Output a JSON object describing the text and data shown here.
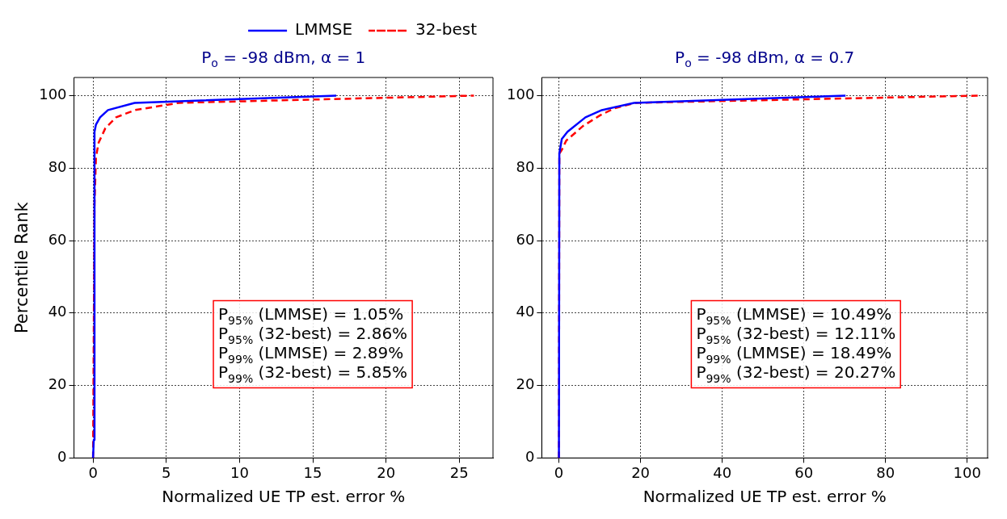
{
  "chart_data": [
    {
      "type": "line",
      "title": "P$_{o}$ = -98 dBm, α = 1",
      "xlabel": "Normalized UE TP est. error %",
      "ylabel": "Percentile Rank",
      "xlim": [
        -1.3,
        27.3
      ],
      "xticks": [
        0,
        5,
        10,
        15,
        20,
        25
      ],
      "ylim": [
        0,
        105
      ],
      "yticks": [
        0,
        20,
        40,
        60,
        80,
        100
      ],
      "grid": true,
      "legend": "top",
      "series": [
        {
          "name": "LMMSE",
          "color": "#0000ff",
          "line_style": "solid",
          "x": [
            0,
            0.05,
            0.1,
            0.2,
            0.48,
            1.02,
            2.84,
            16.6
          ],
          "values": [
            0,
            5,
            90,
            92,
            94,
            96,
            98,
            100
          ]
        },
        {
          "name": "32-best",
          "color": "#ff0000",
          "line_style": "dashed",
          "x": [
            0,
            0.1,
            0.2,
            0.38,
            0.84,
            1.57,
            2.86,
            5.85,
            26
          ],
          "values": [
            0,
            70,
            83,
            87,
            91,
            94,
            96,
            98,
            100
          ]
        }
      ],
      "annotations": [
        "P$_{95%}$ (LMMSE) = 1.05%",
        "P$_{95%}$ (32-best) = 2.86%",
        "P$_{99%}$ (LMMSE) = 2.89%",
        "P$_{99%}$ (32-best) = 5.85%"
      ]
    },
    {
      "type": "line",
      "title": "P$_{o}$ = -98 dBm, α = 0.7",
      "xlabel": "Normalized UE TP est. error %",
      "xlim": [
        -4.2,
        105
      ],
      "xticks": [
        0,
        20,
        40,
        60,
        80,
        100
      ],
      "ylim": [
        0,
        105
      ],
      "yticks": [
        0,
        20,
        40,
        60,
        80,
        100
      ],
      "grid": true,
      "series": [
        {
          "color": "#0000ff",
          "line_style": "solid",
          "x": [
            0,
            0.1,
            0.7,
            2.1,
            6.5,
            10.5,
            18.4,
            70.2
          ],
          "values": [
            0,
            84,
            88,
            90,
            94,
            96,
            98,
            100
          ]
        },
        {
          "color": "#ff0000",
          "line_style": "dashed",
          "x": [
            0,
            0.1,
            0.7,
            1.8,
            5.9,
            10,
            13.6,
            18.8,
            103
          ],
          "values": [
            0,
            84,
            85,
            87.6,
            91.6,
            94.5,
            96.5,
            98,
            100
          ]
        }
      ],
      "annotations": [
        "P$_{95%}$ (LMMSE) = 10.49%",
        "P$_{95%}$ (32-best) = 12.11%",
        "P$_{99%}$ (LMMSE) = 18.49%",
        "P$_{99%}$ (32-best) = 20.27%"
      ]
    }
  ]
}
